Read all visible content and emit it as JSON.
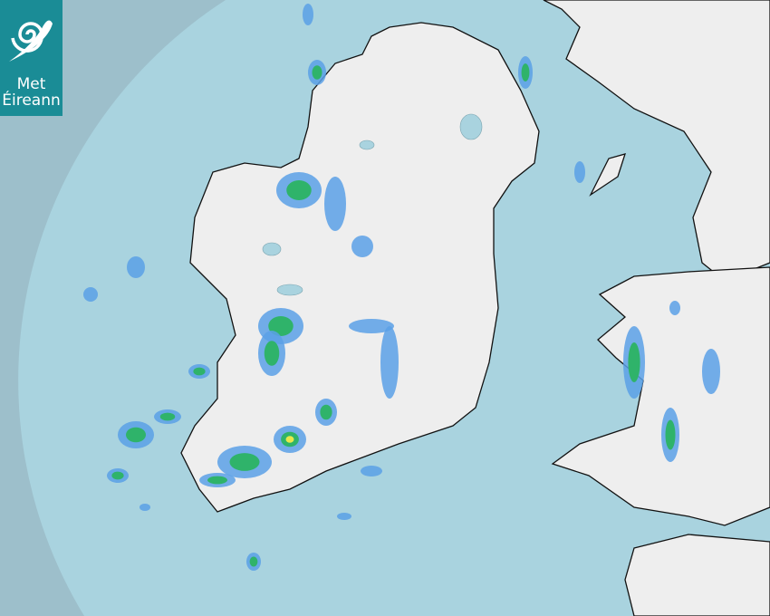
{
  "logo": {
    "line1": "Met",
    "line2": "Éireann",
    "background": "#1a8c96"
  },
  "colors": {
    "outside_range": "#9dbfcb",
    "sea": "#a9d3df",
    "land": "#f0f0f0",
    "coast": "#111111",
    "rain_light": "#5aa0e6",
    "rain_moderate": "#2fb36a",
    "rain_heavy": "#e8e84a"
  }
}
